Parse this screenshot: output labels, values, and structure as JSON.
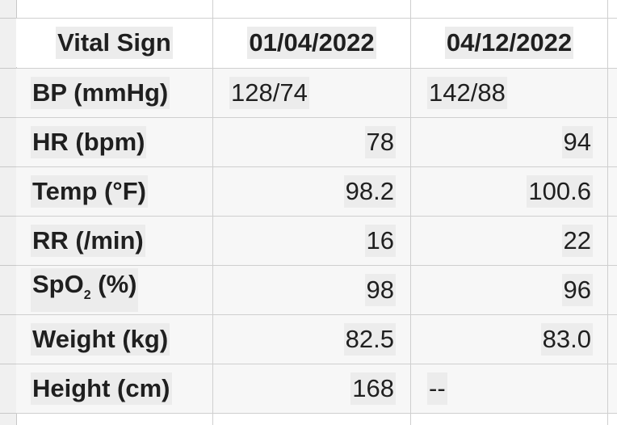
{
  "table": {
    "headers": [
      "Vital Sign",
      "01/04/2022",
      "04/12/2022"
    ],
    "rows": [
      {
        "label": "BP (mmHg)",
        "v1": "128/74",
        "v2": "142/88"
      },
      {
        "label": "HR (bpm)",
        "v1": "78",
        "v2": "94"
      },
      {
        "label": "Temp (°F)",
        "v1": "98.2",
        "v2": "100.6"
      },
      {
        "label": "RR (/min)",
        "v1": "16",
        "v2": "22"
      },
      {
        "label_pre": "SpO",
        "label_sub": "2",
        "label_post": " (%)",
        "v1": "98",
        "v2": "96"
      },
      {
        "label": "Weight (kg)",
        "v1": "82.5",
        "v2": "83.0"
      },
      {
        "label": "Height (cm)",
        "v1": "168",
        "v2": "--"
      }
    ]
  }
}
